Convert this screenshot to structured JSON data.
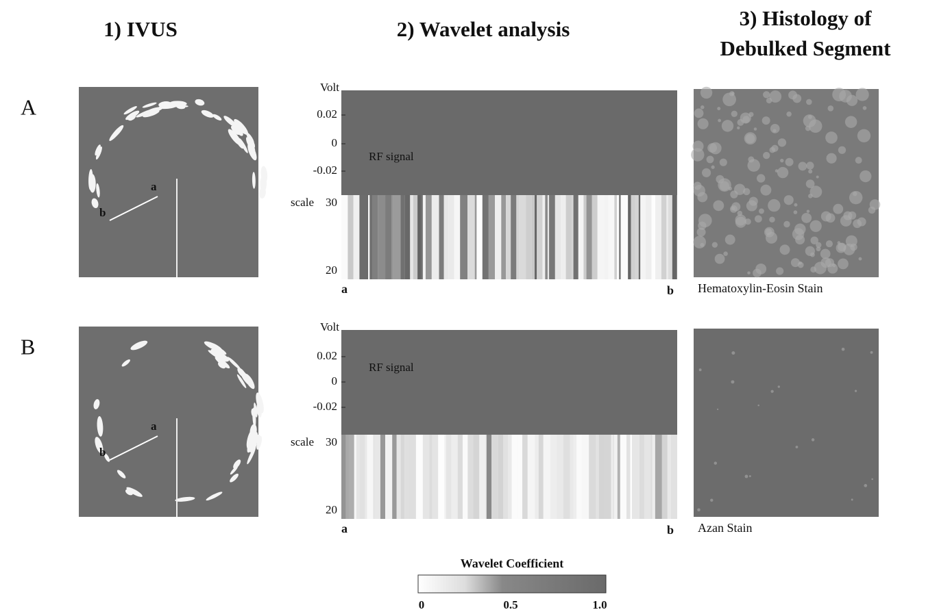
{
  "headers": [
    {
      "lines": [
        "1) IVUS"
      ]
    },
    {
      "lines": [
        "2) Wavelet analysis"
      ]
    },
    {
      "lines": [
        "3) Histology of",
        "Debulked Segment"
      ]
    }
  ],
  "rows": [
    {
      "label": "A",
      "ivus": {
        "point_a": "a",
        "point_b": "b"
      },
      "wavelet": {
        "y_axis_title": "Volt",
        "yticks": [
          "0.02",
          "0",
          "-0.02"
        ],
        "signal_label": "RF signal",
        "scale_label": "scale",
        "scale_ticks": [
          "30",
          "20"
        ],
        "x_start": "a",
        "x_end": "b"
      },
      "stain": "Hematoxylin-Eosin Stain"
    },
    {
      "label": "B",
      "ivus": {
        "point_a": "a",
        "point_b": "b"
      },
      "wavelet": {
        "y_axis_title": "Volt",
        "yticks": [
          "0.02",
          "0",
          "-0.02"
        ],
        "signal_label": "RF signal",
        "scale_label": "scale",
        "scale_ticks": [
          "30",
          "20"
        ],
        "x_start": "a",
        "x_end": "b"
      },
      "stain": "Azan Stain"
    }
  ],
  "colorbar": {
    "title": "Wavelet Coefficient",
    "ticks": [
      "0",
      "0.5",
      "1.0"
    ]
  }
}
